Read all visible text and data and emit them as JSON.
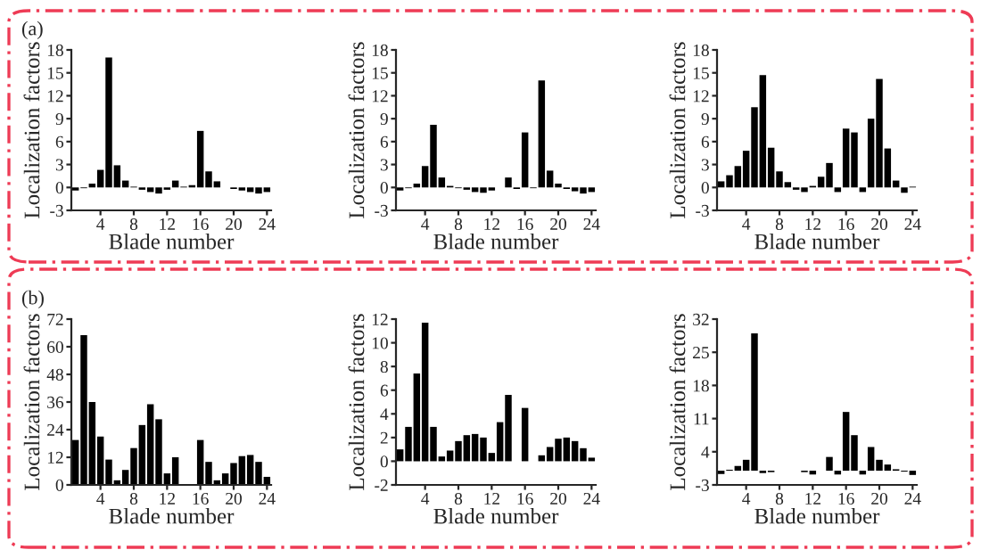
{
  "chart_data": [
    {
      "type": "bar",
      "annotations": [
        "(a)"
      ],
      "xlabel": "Blade number",
      "ylabel": "Localization factors",
      "color": "#000000",
      "x": [
        1,
        2,
        3,
        4,
        5,
        6,
        7,
        8,
        9,
        10,
        11,
        12,
        13,
        14,
        15,
        16,
        17,
        18,
        19,
        20,
        21,
        22,
        23,
        24
      ],
      "xlim": [
        0.5,
        24.5
      ],
      "xticks": [
        4,
        8,
        12,
        16,
        20,
        24
      ],
      "ylim": [
        -3,
        18
      ],
      "yticks": [
        -3,
        0,
        3,
        6,
        9,
        12,
        15,
        18
      ],
      "values": [
        -0.4,
        -0.1,
        0.5,
        2.3,
        17,
        2.9,
        0.9,
        0.1,
        -0.3,
        -0.6,
        -0.8,
        -0.3,
        0.9,
        0.1,
        0.3,
        7.4,
        2.1,
        0.8,
        0.0,
        -0.2,
        -0.4,
        -0.6,
        -0.8,
        -0.6
      ]
    },
    {
      "type": "bar",
      "xlabel": "Blade number",
      "ylabel": "Localization factors",
      "color": "#000000",
      "x": [
        1,
        2,
        3,
        4,
        5,
        6,
        7,
        8,
        9,
        10,
        11,
        12,
        13,
        14,
        15,
        16,
        17,
        18,
        19,
        20,
        21,
        22,
        23,
        24
      ],
      "xlim": [
        0.5,
        24.5
      ],
      "xticks": [
        4,
        8,
        12,
        16,
        20,
        24
      ],
      "ylim": [
        -3,
        18
      ],
      "yticks": [
        -3,
        0,
        3,
        6,
        9,
        12,
        15,
        18
      ],
      "values": [
        -0.4,
        -0.1,
        0.5,
        2.8,
        8.2,
        1.3,
        0.2,
        -0.1,
        -0.3,
        -0.6,
        -0.7,
        -0.4,
        0.0,
        1.3,
        -0.2,
        7.2,
        -0.1,
        14,
        2.2,
        0.5,
        -0.2,
        -0.5,
        -0.8,
        -0.6
      ]
    },
    {
      "type": "bar",
      "xlabel": "Blade number",
      "ylabel": "Localization factors",
      "color": "#000000",
      "x": [
        1,
        2,
        3,
        4,
        5,
        6,
        7,
        8,
        9,
        10,
        11,
        12,
        13,
        14,
        15,
        16,
        17,
        18,
        19,
        20,
        21,
        22,
        23,
        24
      ],
      "xlim": [
        0.5,
        24.5
      ],
      "xticks": [
        4,
        8,
        12,
        16,
        20,
        24
      ],
      "ylim": [
        -3,
        18
      ],
      "yticks": [
        -3,
        0,
        3,
        6,
        9,
        12,
        15,
        18
      ],
      "values": [
        0.8,
        1.6,
        2.8,
        4.8,
        10.5,
        14.7,
        5.2,
        2.1,
        0.7,
        -0.3,
        -0.6,
        0.2,
        1.4,
        3.2,
        -0.6,
        7.7,
        7.2,
        -0.6,
        9.0,
        14.2,
        5.1,
        0.9,
        -0.7,
        0.1
      ]
    },
    {
      "type": "bar",
      "annotations": [
        "(b)"
      ],
      "xlabel": "Blade number",
      "ylabel": "Localization factors",
      "color": "#000000",
      "x": [
        1,
        2,
        3,
        4,
        5,
        6,
        7,
        8,
        9,
        10,
        11,
        12,
        13,
        14,
        15,
        16,
        17,
        18,
        19,
        20,
        21,
        22,
        23,
        24
      ],
      "xlim": [
        0.5,
        24.5
      ],
      "xticks": [
        4,
        8,
        12,
        16,
        20,
        24
      ],
      "ylim": [
        0,
        72
      ],
      "yticks": [
        0,
        12,
        24,
        36,
        48,
        60,
        72
      ],
      "values": [
        19.5,
        65,
        36,
        21,
        11,
        2,
        6.5,
        16,
        26,
        35,
        28.5,
        5,
        12,
        0,
        0,
        19.5,
        10,
        2,
        5,
        9.5,
        12.5,
        13,
        10,
        3.5
      ]
    },
    {
      "type": "bar",
      "xlabel": "Blade number",
      "ylabel": "Localization factors",
      "color": "#000000",
      "x": [
        1,
        2,
        3,
        4,
        5,
        6,
        7,
        8,
        9,
        10,
        11,
        12,
        13,
        14,
        15,
        16,
        17,
        18,
        19,
        20,
        21,
        22,
        23,
        24
      ],
      "xlim": [
        0.5,
        24.5
      ],
      "xticks": [
        4,
        8,
        12,
        16,
        20,
        24
      ],
      "ylim": [
        -2,
        12
      ],
      "yticks": [
        -2,
        0,
        2,
        4,
        6,
        8,
        10,
        12
      ],
      "values": [
        1.0,
        2.9,
        7.4,
        11.7,
        2.9,
        0.4,
        0.9,
        1.7,
        2.2,
        2.3,
        2.0,
        0.7,
        3.3,
        5.6,
        0,
        4.5,
        0,
        0.5,
        1.2,
        1.9,
        2.0,
        1.7,
        1.1,
        0.3
      ]
    },
    {
      "type": "bar",
      "xlabel": "Blade number",
      "ylabel": "Localization factors",
      "color": "#000000",
      "x": [
        1,
        2,
        3,
        4,
        5,
        6,
        7,
        8,
        9,
        10,
        11,
        12,
        13,
        14,
        15,
        16,
        17,
        18,
        19,
        20,
        21,
        22,
        23,
        24
      ],
      "xlim": [
        0.5,
        24.5
      ],
      "xticks": [
        4,
        8,
        12,
        16,
        20,
        24
      ],
      "ylim": [
        -3,
        32
      ],
      "yticks": [
        -3,
        4,
        11,
        18,
        25,
        32
      ],
      "values": [
        -0.7,
        0.2,
        1.0,
        2.3,
        29,
        -0.5,
        -0.3,
        0,
        0,
        0,
        -0.3,
        -0.8,
        0,
        2.9,
        -0.8,
        12.4,
        7.5,
        -0.8,
        5.0,
        2.3,
        1.3,
        0.3,
        -0.2,
        -0.9
      ]
    }
  ]
}
